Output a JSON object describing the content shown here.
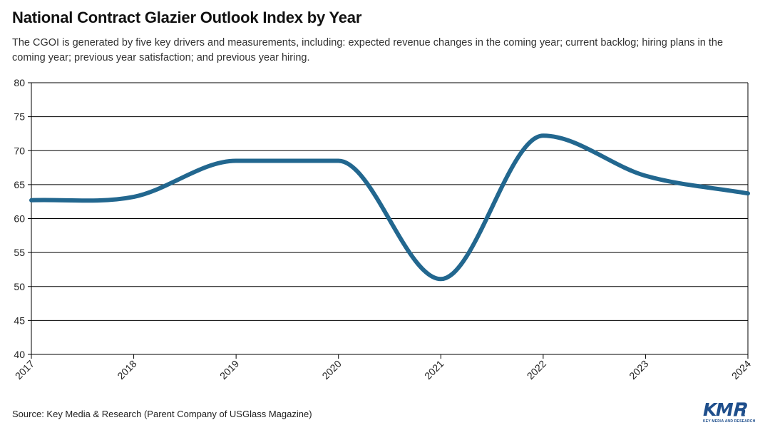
{
  "chart_data": {
    "type": "line",
    "title": "National Contract Glazier Outlook Index by Year",
    "subtitle": "The CGOI is generated by five key drivers and measurements, including: expected revenue changes in the coming year; current backlog; hiring plans in the coming year; previous year satisfaction; and previous year hiring.",
    "x": [
      "2017",
      "2018",
      "2019",
      "2020",
      "2021",
      "2022",
      "2023",
      "2024"
    ],
    "series": [
      {
        "values": [
          62.7,
          63.2,
          68.5,
          68.5,
          51.1,
          72.2,
          66.3,
          63.7
        ]
      }
    ],
    "ylim": [
      40,
      80
    ],
    "yticks": [
      40,
      45,
      50,
      55,
      60,
      65,
      70,
      75,
      80
    ],
    "grid": "horizontal",
    "line_color": "#22678f",
    "xlabel": "",
    "ylabel": ""
  },
  "footer": {
    "source": "Source: Key Media & Research (Parent Company of USGlass Magazine)",
    "logo_text": "KMR",
    "logo_subtext": "KEY MEDIA AND RESEARCH"
  }
}
